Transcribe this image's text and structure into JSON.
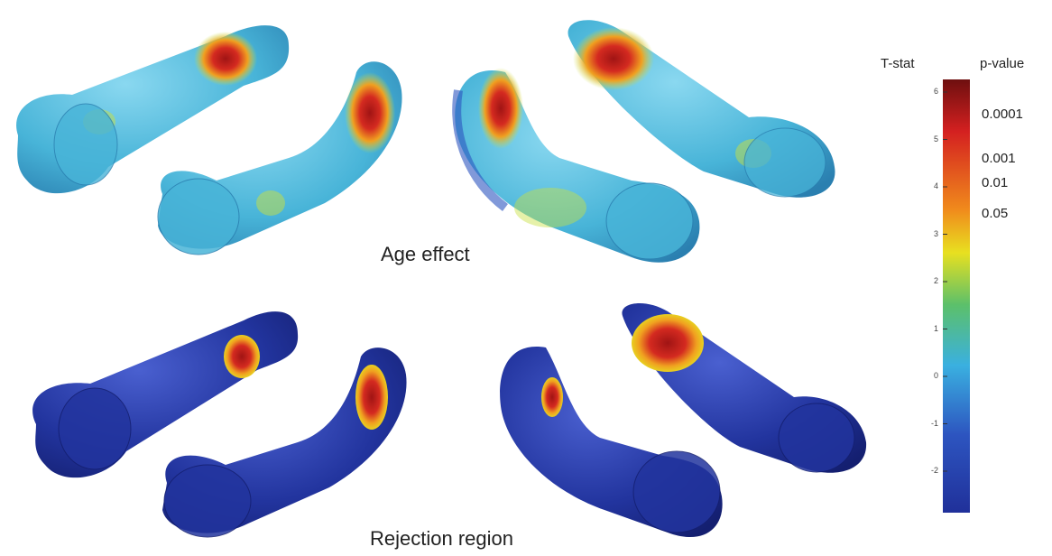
{
  "panels": {
    "top_title": "Age effect",
    "bottom_title": "Rejection region"
  },
  "colorbar": {
    "left_header": "T-stat",
    "right_header": "p-value",
    "t_ticks": [
      "6",
      "5",
      "4",
      "3",
      "2",
      "1",
      "0",
      "-1",
      "-2"
    ],
    "p_labels": [
      "0.0001",
      "0.001",
      "0.01",
      "0.05"
    ],
    "colors": {
      "max": "#7a1010",
      "red": "#d42020",
      "orange": "#f08a1c",
      "yellow": "#e8e020",
      "green": "#5cc06a",
      "cyan": "#3ab0e0",
      "blue": "#2d55c0",
      "min": "#20309a"
    }
  },
  "surface_colors": {
    "base_age": "#48b4d8",
    "base_rejection": "#22349e",
    "hot": "#d42a20",
    "warm": "#f0a020",
    "mild": "#c8e040"
  }
}
